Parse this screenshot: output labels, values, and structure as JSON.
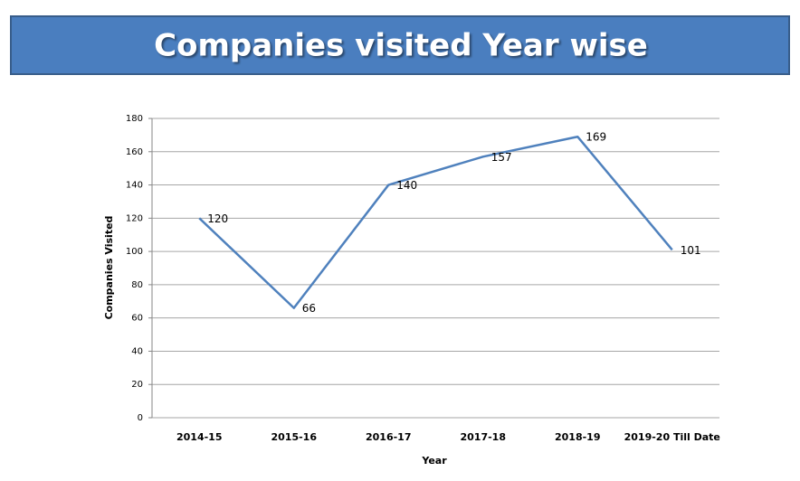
{
  "chart_data": {
    "type": "line",
    "title": "Companies visited Year wise",
    "x_label": "Year",
    "y_label": "Companies Visited",
    "categories": [
      "2014-15",
      "2015-16",
      "2016-17",
      "2017-18",
      "2018-19",
      "2019-20 Till Date"
    ],
    "series": [
      {
        "name": "Companies Visited",
        "color": "#4f81bd",
        "values": [
          120,
          66,
          140,
          157,
          169,
          101
        ]
      }
    ],
    "ylim": [
      0,
      180
    ],
    "yticks": [
      0,
      20,
      40,
      60,
      80,
      100,
      120,
      140,
      160,
      180
    ],
    "grid": true
  }
}
